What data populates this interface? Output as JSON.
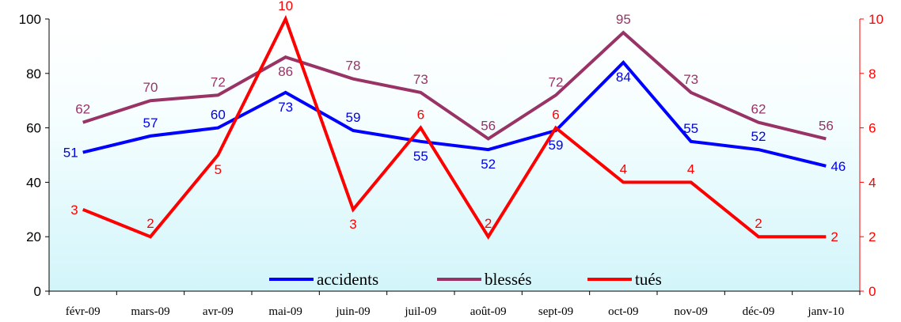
{
  "chart_data": {
    "type": "line",
    "categories": [
      "févr-09",
      "mars-09",
      "avr-09",
      "mai-09",
      "juin-09",
      "juil-09",
      "août-09",
      "sept-09",
      "oct-09",
      "nov-09",
      "déc-09",
      "janv-10"
    ],
    "y_left": {
      "min": 0,
      "max": 100,
      "ticks": [
        "0",
        "20",
        "40",
        "60",
        "80",
        "100"
      ],
      "color": "#000000"
    },
    "y_right": {
      "min": 0,
      "max": 10,
      "ticks": [
        "0",
        "2",
        "4",
        "6",
        "8",
        "10"
      ],
      "color": "#ff0000"
    },
    "series": [
      {
        "name": "accidents",
        "axis": "left",
        "color": "#0000ff",
        "label_color": "#0000ee",
        "label_pos": [
          "left",
          "above",
          "above",
          "below",
          "above",
          "below",
          "below",
          "below",
          "below",
          "above",
          "above",
          "right"
        ],
        "values": [
          51,
          57,
          60,
          73,
          59,
          55,
          52,
          59,
          84,
          55,
          52,
          46
        ]
      },
      {
        "name": "blessés",
        "axis": "left",
        "color": "#993366",
        "label_color": "#993366",
        "label_pos": [
          "above",
          "above",
          "above",
          "below",
          "above",
          "above",
          "above",
          "above",
          "above",
          "above",
          "above",
          "above"
        ],
        "values": [
          62,
          70,
          72,
          86,
          78,
          73,
          56,
          72,
          95,
          73,
          62,
          56
        ]
      },
      {
        "name": "tués",
        "axis": "right",
        "color": "#ff0000",
        "label_color": "#ff0000",
        "label_pos": [
          "left",
          "above",
          "below",
          "above",
          "below",
          "above",
          "above",
          "above",
          "above",
          "above",
          "above",
          "right"
        ],
        "values": [
          3,
          2,
          5,
          10,
          3,
          6,
          2,
          6,
          4,
          4,
          2,
          2
        ]
      }
    ],
    "legend_position": "bottom-center",
    "background": "gradient white to light cyan",
    "grid": false
  }
}
